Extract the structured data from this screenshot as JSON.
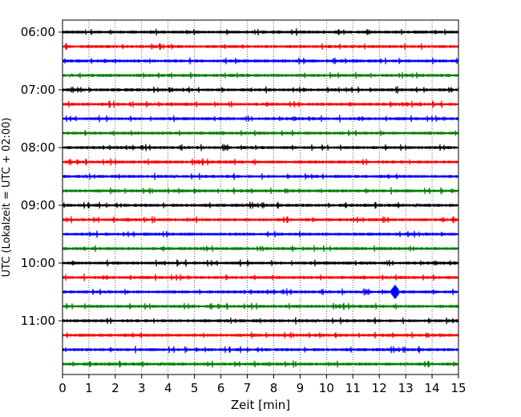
{
  "chart_data": {
    "type": "line",
    "title": "",
    "xlabel": "Zeit  [min]",
    "ylabel": "UTC (Lokalzeit = UTC + 02:00)",
    "xlim": [
      0,
      15
    ],
    "x_ticks": [
      "0",
      "1",
      "2",
      "3",
      "4",
      "5",
      "6",
      "7",
      "8",
      "9",
      "10",
      "11",
      "12",
      "13",
      "14",
      "15"
    ],
    "y_tick_labels": [
      "06:00",
      "07:00",
      "08:00",
      "09:00",
      "10:00",
      "11:00"
    ],
    "grid": "vertical dotted lines at each minute",
    "legend": "none",
    "trace_interval_minutes": 15,
    "series": [
      {
        "start": "06:00",
        "color": "#000000"
      },
      {
        "start": "06:15",
        "color": "#ff0000"
      },
      {
        "start": "06:30",
        "color": "#0000ff"
      },
      {
        "start": "06:45",
        "color": "#008000"
      },
      {
        "start": "07:00",
        "color": "#000000"
      },
      {
        "start": "07:15",
        "color": "#ff0000"
      },
      {
        "start": "07:30",
        "color": "#0000ff"
      },
      {
        "start": "07:45",
        "color": "#008000"
      },
      {
        "start": "08:00",
        "color": "#000000"
      },
      {
        "start": "08:15",
        "color": "#ff0000"
      },
      {
        "start": "08:30",
        "color": "#0000ff"
      },
      {
        "start": "08:45",
        "color": "#008000"
      },
      {
        "start": "09:00",
        "color": "#000000"
      },
      {
        "start": "09:15",
        "color": "#ff0000"
      },
      {
        "start": "09:30",
        "color": "#0000ff"
      },
      {
        "start": "09:45",
        "color": "#008000"
      },
      {
        "start": "10:00",
        "color": "#000000"
      },
      {
        "start": "10:15",
        "color": "#ff0000"
      },
      {
        "start": "10:30",
        "color": "#0000ff",
        "event_minute": 12.6
      },
      {
        "start": "10:45",
        "color": "#008000"
      },
      {
        "start": "11:00",
        "color": "#000000"
      },
      {
        "start": "11:15",
        "color": "#ff0000"
      },
      {
        "start": "11:30",
        "color": "#0000ff"
      },
      {
        "start": "11:45",
        "color": "#008000"
      }
    ]
  }
}
